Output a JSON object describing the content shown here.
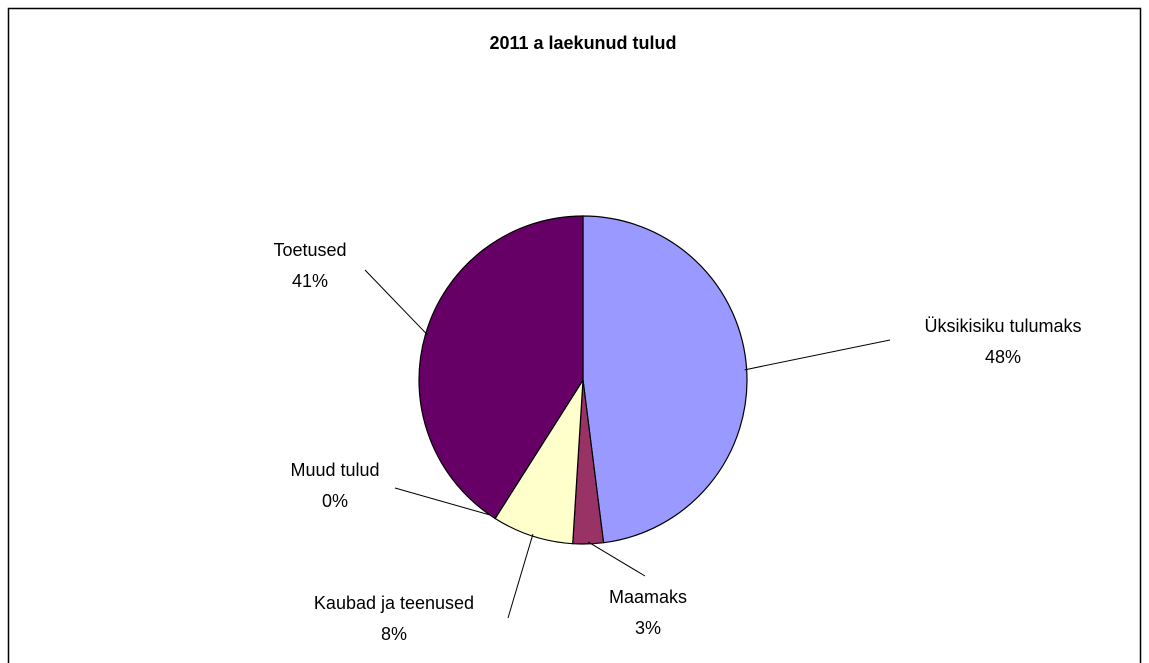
{
  "chart_data": {
    "type": "pie",
    "title": "2011 a laekunud tulud",
    "categories": [
      "Üksikisiku tulumaks",
      "Maamaks",
      "Kaubad ja teenused",
      "Muud tulud",
      "Toetused"
    ],
    "values": [
      48,
      3,
      8,
      0,
      41
    ],
    "value_labels": [
      "48%",
      "3%",
      "8%",
      "0%",
      "41%"
    ],
    "colors": [
      "#9999ff",
      "#993366",
      "#ffffcc",
      "#ccffff",
      "#660066"
    ]
  }
}
